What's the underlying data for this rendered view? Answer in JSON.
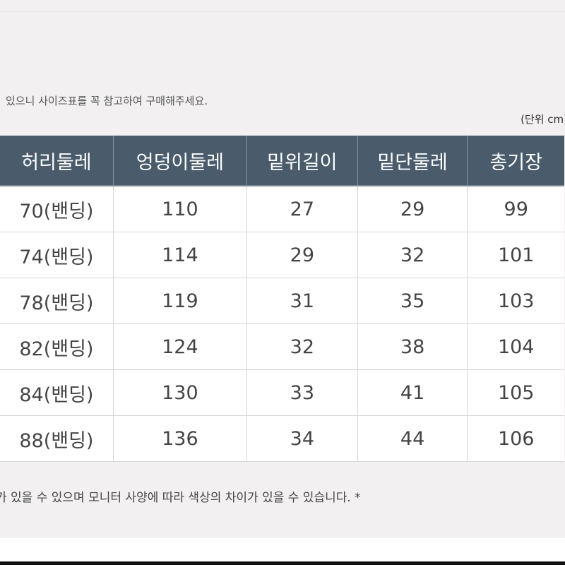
{
  "notice": "있으니 사이즈표를 꼭 참고하여 구매해주세요.",
  "unit_label": "(단위 cm)",
  "table": {
    "headers": [
      "허리둘레",
      "엉덩이둘레",
      "밑위길이",
      "밑단둘레",
      "총기장"
    ],
    "rows": [
      [
        "70(밴딩)",
        "110",
        "27",
        "29",
        "99"
      ],
      [
        "74(밴딩)",
        "114",
        "29",
        "32",
        "101"
      ],
      [
        "78(밴딩)",
        "119",
        "31",
        "35",
        "103"
      ],
      [
        "82(밴딩)",
        "124",
        "32",
        "38",
        "104"
      ],
      [
        "84(밴딩)",
        "130",
        "33",
        "41",
        "105"
      ],
      [
        "88(밴딩)",
        "136",
        "34",
        "44",
        "106"
      ]
    ]
  },
  "footnote": "가 있을 수 있으며 모니터 사양에 따라  색상의 차이가 있을 수 있습니다. *",
  "colors": {
    "header_bg": "#4a5b6c",
    "page_bg": "#f2f0f0"
  }
}
